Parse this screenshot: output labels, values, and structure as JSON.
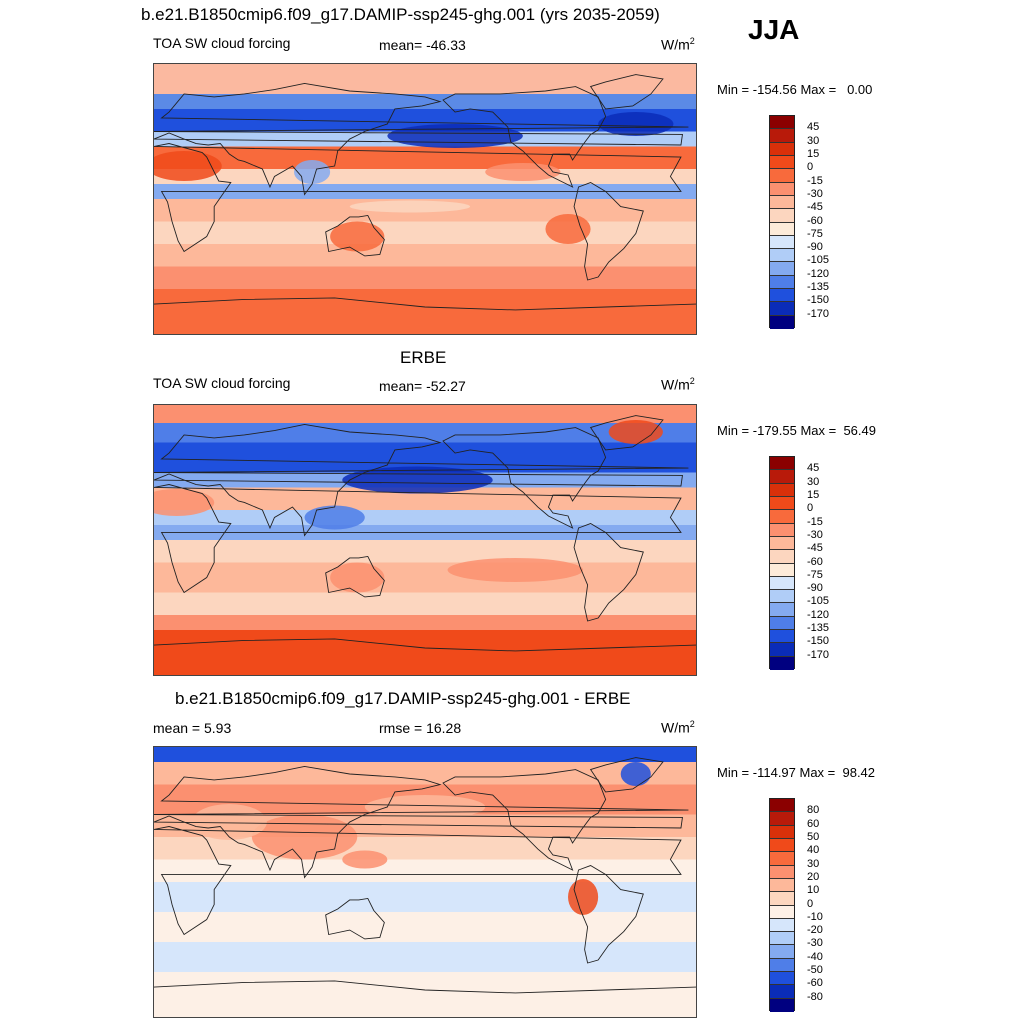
{
  "header": {
    "title": "b.e21.B1850cmip6.f09_g17.DAMIP-ssp245-ghg.001 (yrs 2035-2059)",
    "season": "JJA"
  },
  "panels": [
    {
      "title": "",
      "left_label": "TOA SW cloud forcing",
      "center_label": "mean= -46.33",
      "units": "W/m",
      "units_sup": "2",
      "minmax": "Min = -154.56 Max =   0.00",
      "colorbar": {
        "labels": [
          "45",
          "30",
          "15",
          "0",
          "-15",
          "-30",
          "-45",
          "-60",
          "-75",
          "-90",
          "-105",
          "-120",
          "-135",
          "-150",
          "-170"
        ],
        "colors": [
          "#8b0000",
          "#b81a0a",
          "#d9300a",
          "#f04a1a",
          "#f86a3c",
          "#fb9070",
          "#fdb89a",
          "#fcd6bf",
          "#fdebd9",
          "#d6e6fb",
          "#b0cdf7",
          "#84aaf0",
          "#4f7ee8",
          "#1f50dd",
          "#0a2cb8",
          "#000080"
        ]
      },
      "map_scheme": "model"
    },
    {
      "title": "ERBE",
      "left_label": "TOA SW cloud forcing",
      "center_label": "mean= -52.27",
      "units": "W/m",
      "units_sup": "2",
      "minmax": "Min = -179.55 Max =  56.49",
      "colorbar": {
        "labels": [
          "45",
          "30",
          "15",
          "0",
          "-15",
          "-30",
          "-45",
          "-60",
          "-75",
          "-90",
          "-105",
          "-120",
          "-135",
          "-150",
          "-170"
        ],
        "colors": [
          "#8b0000",
          "#b81a0a",
          "#d9300a",
          "#f04a1a",
          "#f86a3c",
          "#fb9070",
          "#fdb89a",
          "#fcd6bf",
          "#fdebd9",
          "#d6e6fb",
          "#b0cdf7",
          "#84aaf0",
          "#4f7ee8",
          "#1f50dd",
          "#0a2cb8",
          "#000080"
        ]
      },
      "map_scheme": "obs"
    },
    {
      "title": "b.e21.B1850cmip6.f09_g17.DAMIP-ssp245-ghg.001 - ERBE",
      "left_label": "mean =   5.93",
      "center_label": "rmse =  16.28",
      "units": "W/m",
      "units_sup": "2",
      "minmax": "Min = -114.97 Max =  98.42",
      "colorbar": {
        "labels": [
          "80",
          "60",
          "50",
          "40",
          "30",
          "20",
          "10",
          "0",
          "-10",
          "-20",
          "-30",
          "-40",
          "-50",
          "-60",
          "-80"
        ],
        "colors": [
          "#8b0000",
          "#b81a0a",
          "#d9300a",
          "#f04a1a",
          "#f86a3c",
          "#fb9070",
          "#fdb89a",
          "#fcd6bf",
          "#fdf0e6",
          "#d6e6fb",
          "#b0cdf7",
          "#84aaf0",
          "#4f7ee8",
          "#1f50dd",
          "#0a2cb8",
          "#000080"
        ]
      },
      "map_scheme": "diff"
    }
  ]
}
